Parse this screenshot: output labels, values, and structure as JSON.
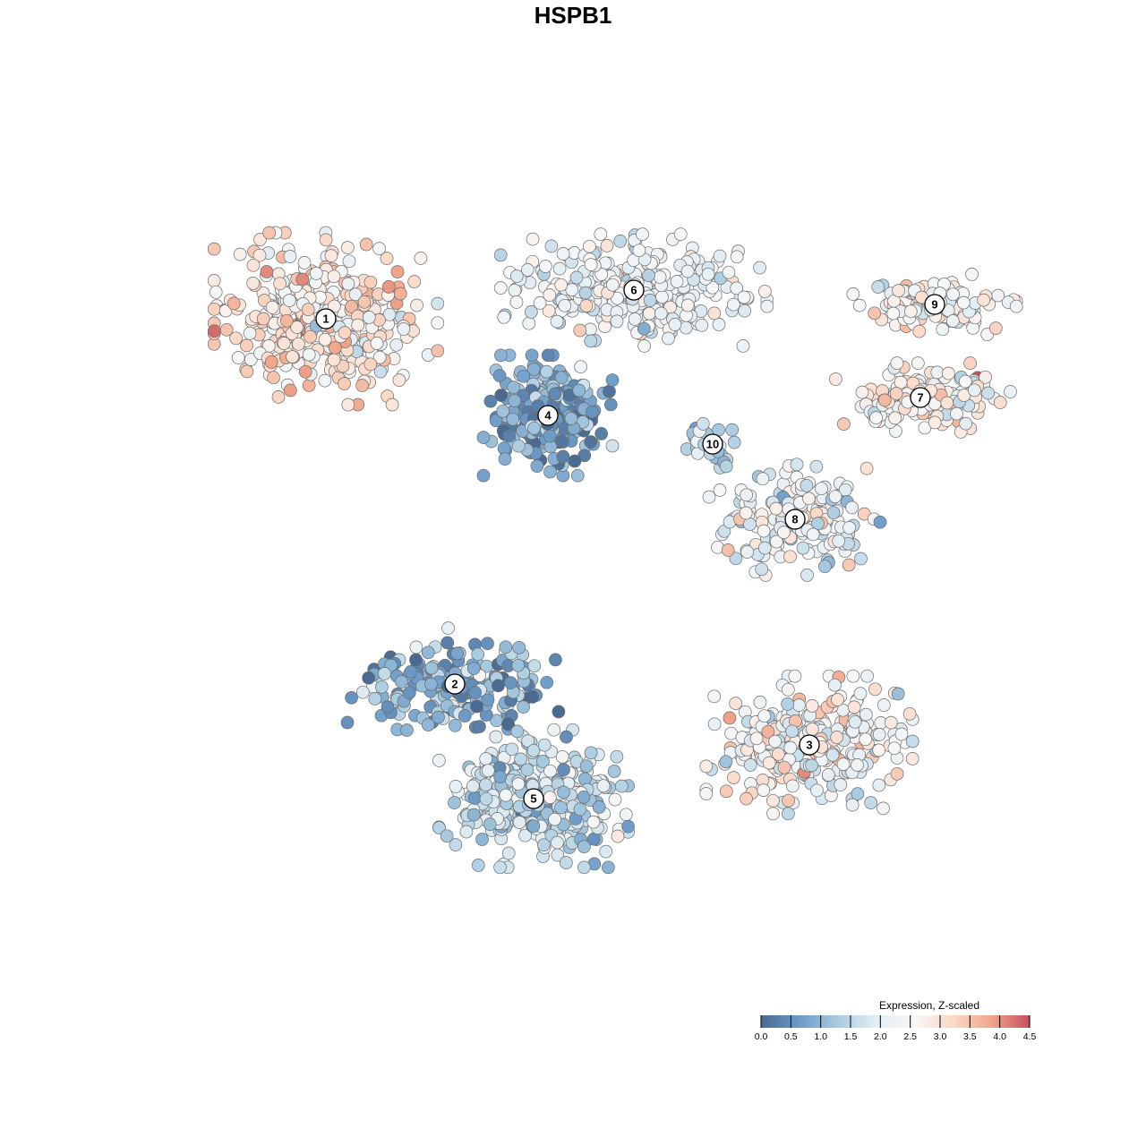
{
  "chart_data": {
    "type": "scatter",
    "title": "HSPB1",
    "xlabel": "",
    "ylabel": "",
    "grid": false,
    "legend": {
      "title": "Expression, Z-scaled",
      "placement": "bottom-right",
      "range": [
        0,
        4.5
      ],
      "ticks": [
        "0.0",
        "0.5",
        "1.0",
        "1.5",
        "2.0",
        "2.5",
        "3.0",
        "3.5",
        "4.0",
        "4.5"
      ],
      "colors": [
        "#4a6a91",
        "#6b9ac8",
        "#a9cbe0",
        "#e4eef4",
        "#f7f7f7",
        "#fbd9c7",
        "#f0a58a",
        "#c6505f"
      ]
    },
    "clusters": [
      {
        "label": "1",
        "x": -6.9,
        "y": 7.1,
        "spread": [
          2.6,
          2.0
        ],
        "n": 420,
        "expr_mean": 2.9,
        "expr_sd": 0.55
      },
      {
        "label": "2",
        "x": -3.3,
        "y": -3.1,
        "spread": [
          2.5,
          1.3
        ],
        "n": 180,
        "expr_mean": 0.9,
        "expr_sd": 0.6
      },
      {
        "label": "3",
        "x": 6.6,
        "y": -4.8,
        "spread": [
          2.4,
          1.6
        ],
        "n": 300,
        "expr_mean": 2.5,
        "expr_sd": 0.6
      },
      {
        "label": "4",
        "x": -0.7,
        "y": 4.4,
        "spread": [
          1.5,
          1.4
        ],
        "n": 260,
        "expr_mean": 0.8,
        "expr_sd": 0.5
      },
      {
        "label": "5",
        "x": -1.1,
        "y": -6.3,
        "spread": [
          2.2,
          1.6
        ],
        "n": 380,
        "expr_mean": 1.6,
        "expr_sd": 0.5
      },
      {
        "label": "6",
        "x": 1.7,
        "y": 7.9,
        "spread": [
          3.1,
          1.3
        ],
        "n": 330,
        "expr_mean": 2.2,
        "expr_sd": 0.45
      },
      {
        "label": "7",
        "x": 9.7,
        "y": 4.9,
        "spread": [
          2.2,
          0.8
        ],
        "n": 140,
        "expr_mean": 2.6,
        "expr_sd": 0.5
      },
      {
        "label": "8",
        "x": 6.2,
        "y": 1.5,
        "spread": [
          2.0,
          1.3
        ],
        "n": 170,
        "expr_mean": 2.2,
        "expr_sd": 0.6
      },
      {
        "label": "9",
        "x": 10.1,
        "y": 7.5,
        "spread": [
          1.9,
          0.7
        ],
        "n": 110,
        "expr_mean": 2.5,
        "expr_sd": 0.55
      },
      {
        "label": "10",
        "x": 3.9,
        "y": 3.6,
        "spread": [
          0.6,
          0.6
        ],
        "n": 45,
        "expr_mean": 1.3,
        "expr_sd": 0.4
      }
    ]
  }
}
